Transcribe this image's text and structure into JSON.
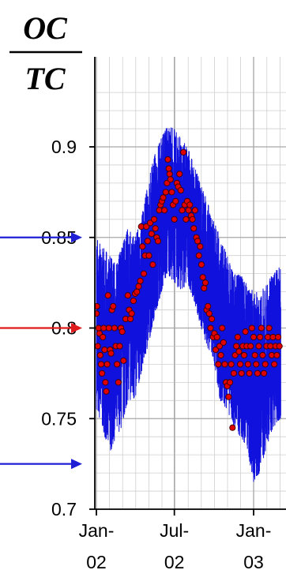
{
  "chart_data": {
    "type": "scatter",
    "title": "",
    "ylabel_numerator": "OC",
    "ylabel_denominator": "TC",
    "xlabel": "",
    "ylim": [
      0.7,
      0.93
    ],
    "yticks": [
      "0.7",
      "0.75",
      "0.8",
      "0.85",
      "0.9"
    ],
    "ytick_values": [
      0.7,
      0.75,
      0.8,
      0.85,
      0.9
    ],
    "xlim": [
      "2002-01-01",
      "2003-03-05"
    ],
    "xticks": [
      {
        "date": "2002-01-01",
        "line1": "Jan-",
        "line2": "02"
      },
      {
        "date": "2002-07-01",
        "line1": "Jul-",
        "line2": "02"
      },
      {
        "date": "2003-01-01",
        "line1": "Jan-",
        "line2": "03"
      }
    ],
    "grid": true,
    "reference_arrows": [
      {
        "value": 0.85,
        "color": "#1f1fd6"
      },
      {
        "value": 0.8,
        "color": "#e01b1b"
      },
      {
        "value": 0.725,
        "color": "#1f1fd6"
      }
    ],
    "band": {
      "name": "range",
      "color": "#1111dd",
      "dates": [
        "2002-01-01",
        "2002-01-15",
        "2002-02-01",
        "2002-02-15",
        "2002-03-01",
        "2002-03-15",
        "2002-04-01",
        "2002-04-15",
        "2002-05-01",
        "2002-05-15",
        "2002-06-01",
        "2002-06-15",
        "2002-07-01",
        "2002-07-15",
        "2002-08-01",
        "2002-08-15",
        "2002-09-01",
        "2002-09-15",
        "2002-10-01",
        "2002-10-15",
        "2002-11-01",
        "2002-11-15",
        "2002-12-01",
        "2002-12-15",
        "2003-01-01",
        "2003-01-15",
        "2003-02-01",
        "2003-02-15",
        "2003-03-05"
      ],
      "low": [
        0.755,
        0.745,
        0.73,
        0.74,
        0.745,
        0.76,
        0.76,
        0.775,
        0.79,
        0.805,
        0.82,
        0.83,
        0.825,
        0.82,
        0.825,
        0.815,
        0.8,
        0.79,
        0.78,
        0.76,
        0.755,
        0.745,
        0.74,
        0.735,
        0.715,
        0.72,
        0.735,
        0.745,
        0.75
      ],
      "high": [
        0.85,
        0.845,
        0.84,
        0.835,
        0.845,
        0.855,
        0.85,
        0.86,
        0.88,
        0.895,
        0.905,
        0.912,
        0.91,
        0.905,
        0.9,
        0.89,
        0.88,
        0.87,
        0.86,
        0.85,
        0.84,
        0.83,
        0.83,
        0.825,
        0.82,
        0.82,
        0.825,
        0.83,
        0.835
      ]
    },
    "series": [
      {
        "name": "OC/TC",
        "color": "#e00000",
        "points": [
          [
            "2002-01-01",
            0.808
          ],
          [
            "2002-01-02",
            0.812
          ],
          [
            "2002-01-04",
            0.79
          ],
          [
            "2002-01-06",
            0.8
          ],
          [
            "2002-01-08",
            0.797
          ],
          [
            "2002-01-10",
            0.785
          ],
          [
            "2002-01-12",
            0.78
          ],
          [
            "2002-01-14",
            0.775
          ],
          [
            "2002-01-16",
            0.795
          ],
          [
            "2002-01-18",
            0.8
          ],
          [
            "2002-01-20",
            0.788
          ],
          [
            "2002-01-22",
            0.77
          ],
          [
            "2002-01-24",
            0.765
          ],
          [
            "2002-01-26",
            0.78
          ],
          [
            "2002-01-28",
            0.818
          ],
          [
            "2002-01-30",
            0.8
          ],
          [
            "2002-02-02",
            0.788
          ],
          [
            "2002-02-04",
            0.786
          ],
          [
            "2002-02-06",
            0.81
          ],
          [
            "2002-02-09",
            0.812
          ],
          [
            "2002-02-12",
            0.8
          ],
          [
            "2002-02-15",
            0.79
          ],
          [
            "2002-02-18",
            0.78
          ],
          [
            "2002-02-21",
            0.77
          ],
          [
            "2002-02-24",
            0.79
          ],
          [
            "2002-02-27",
            0.8
          ],
          [
            "2002-03-02",
            0.798
          ],
          [
            "2002-03-05",
            0.782
          ],
          [
            "2002-03-10",
            0.805
          ],
          [
            "2002-03-15",
            0.818
          ],
          [
            "2002-03-18",
            0.81
          ],
          [
            "2002-03-21",
            0.805
          ],
          [
            "2002-03-24",
            0.808
          ],
          [
            "2002-03-28",
            0.815
          ],
          [
            "2002-04-01",
            0.819
          ],
          [
            "2002-04-05",
            0.82
          ],
          [
            "2002-04-09",
            0.823
          ],
          [
            "2002-04-13",
            0.826
          ],
          [
            "2002-04-15",
            0.856
          ],
          [
            "2002-04-18",
            0.845
          ],
          [
            "2002-04-21",
            0.83
          ],
          [
            "2002-04-24",
            0.84
          ],
          [
            "2002-04-27",
            0.856
          ],
          [
            "2002-04-30",
            0.848
          ],
          [
            "2002-05-03",
            0.84
          ],
          [
            "2002-05-06",
            0.858
          ],
          [
            "2002-05-09",
            0.852
          ],
          [
            "2002-05-12",
            0.835
          ],
          [
            "2002-05-15",
            0.86
          ],
          [
            "2002-05-18",
            0.855
          ],
          [
            "2002-05-21",
            0.85
          ],
          [
            "2002-05-24",
            0.848
          ],
          [
            "2002-05-27",
            0.865
          ],
          [
            "2002-05-30",
            0.868
          ],
          [
            "2002-06-02",
            0.87
          ],
          [
            "2002-06-05",
            0.872
          ],
          [
            "2002-06-08",
            0.865
          ],
          [
            "2002-06-11",
            0.875
          ],
          [
            "2002-06-14",
            0.88
          ],
          [
            "2002-06-16",
            0.893
          ],
          [
            "2002-06-18",
            0.888
          ],
          [
            "2002-06-20",
            0.885
          ],
          [
            "2002-06-22",
            0.882
          ],
          [
            "2002-06-25",
            0.875
          ],
          [
            "2002-06-28",
            0.868
          ],
          [
            "2002-07-01",
            0.86
          ],
          [
            "2002-07-04",
            0.87
          ],
          [
            "2002-07-07",
            0.88
          ],
          [
            "2002-07-10",
            0.878
          ],
          [
            "2002-07-13",
            0.885
          ],
          [
            "2002-07-16",
            0.876
          ],
          [
            "2002-07-19",
            0.865
          ],
          [
            "2002-07-22",
            0.897
          ],
          [
            "2002-07-25",
            0.868
          ],
          [
            "2002-07-28",
            0.86
          ],
          [
            "2002-07-31",
            0.87
          ],
          [
            "2002-08-03",
            0.865
          ],
          [
            "2002-08-06",
            0.868
          ],
          [
            "2002-08-09",
            0.862
          ],
          [
            "2002-08-12",
            0.86
          ],
          [
            "2002-08-15",
            0.855
          ],
          [
            "2002-08-18",
            0.865
          ],
          [
            "2002-08-21",
            0.85
          ],
          [
            "2002-08-24",
            0.848
          ],
          [
            "2002-08-27",
            0.84
          ],
          [
            "2002-08-30",
            0.845
          ],
          [
            "2002-09-02",
            0.835
          ],
          [
            "2002-09-05",
            0.828
          ],
          [
            "2002-09-08",
            0.822
          ],
          [
            "2002-09-11",
            0.825
          ],
          [
            "2002-09-14",
            0.81
          ],
          [
            "2002-09-17",
            0.812
          ],
          [
            "2002-09-20",
            0.808
          ],
          [
            "2002-09-23",
            0.8
          ],
          [
            "2002-09-26",
            0.805
          ],
          [
            "2002-09-29",
            0.795
          ],
          [
            "2002-10-02",
            0.797
          ],
          [
            "2002-10-05",
            0.788
          ],
          [
            "2002-10-08",
            0.795
          ],
          [
            "2002-10-11",
            0.78
          ],
          [
            "2002-10-14",
            0.79
          ],
          [
            "2002-10-17",
            0.785
          ],
          [
            "2002-10-20",
            0.8
          ],
          [
            "2002-10-23",
            0.792
          ],
          [
            "2002-10-26",
            0.78
          ],
          [
            "2002-10-29",
            0.77
          ],
          [
            "2002-11-01",
            0.768
          ],
          [
            "2002-11-04",
            0.762
          ],
          [
            "2002-11-07",
            0.77
          ],
          [
            "2002-11-10",
            0.78
          ],
          [
            "2002-11-13",
            0.745
          ],
          [
            "2002-11-16",
            0.775
          ],
          [
            "2002-11-19",
            0.785
          ],
          [
            "2002-11-22",
            0.79
          ],
          [
            "2002-11-25",
            0.795
          ],
          [
            "2002-11-28",
            0.787
          ],
          [
            "2002-12-01",
            0.78
          ],
          [
            "2002-12-04",
            0.775
          ],
          [
            "2002-12-07",
            0.79
          ],
          [
            "2002-12-10",
            0.785
          ],
          [
            "2002-12-13",
            0.798
          ],
          [
            "2002-12-16",
            0.79
          ],
          [
            "2002-12-19",
            0.78
          ],
          [
            "2002-12-22",
            0.775
          ],
          [
            "2002-12-25",
            0.79
          ],
          [
            "2002-12-28",
            0.8
          ],
          [
            "2003-01-01",
            0.795
          ],
          [
            "2003-01-04",
            0.785
          ],
          [
            "2003-01-07",
            0.78
          ],
          [
            "2003-01-10",
            0.775
          ],
          [
            "2003-01-13",
            0.79
          ],
          [
            "2003-01-16",
            0.795
          ],
          [
            "2003-01-19",
            0.8
          ],
          [
            "2003-01-22",
            0.785
          ],
          [
            "2003-01-25",
            0.775
          ],
          [
            "2003-01-28",
            0.78
          ],
          [
            "2003-01-31",
            0.79
          ],
          [
            "2003-02-03",
            0.795
          ],
          [
            "2003-02-06",
            0.8
          ],
          [
            "2003-02-09",
            0.79
          ],
          [
            "2003-02-12",
            0.785
          ],
          [
            "2003-02-15",
            0.795
          ],
          [
            "2003-02-18",
            0.78
          ],
          [
            "2003-02-21",
            0.79
          ],
          [
            "2003-02-24",
            0.785
          ],
          [
            "2003-02-27",
            0.795
          ],
          [
            "2003-03-02",
            0.79
          ]
        ]
      }
    ]
  }
}
